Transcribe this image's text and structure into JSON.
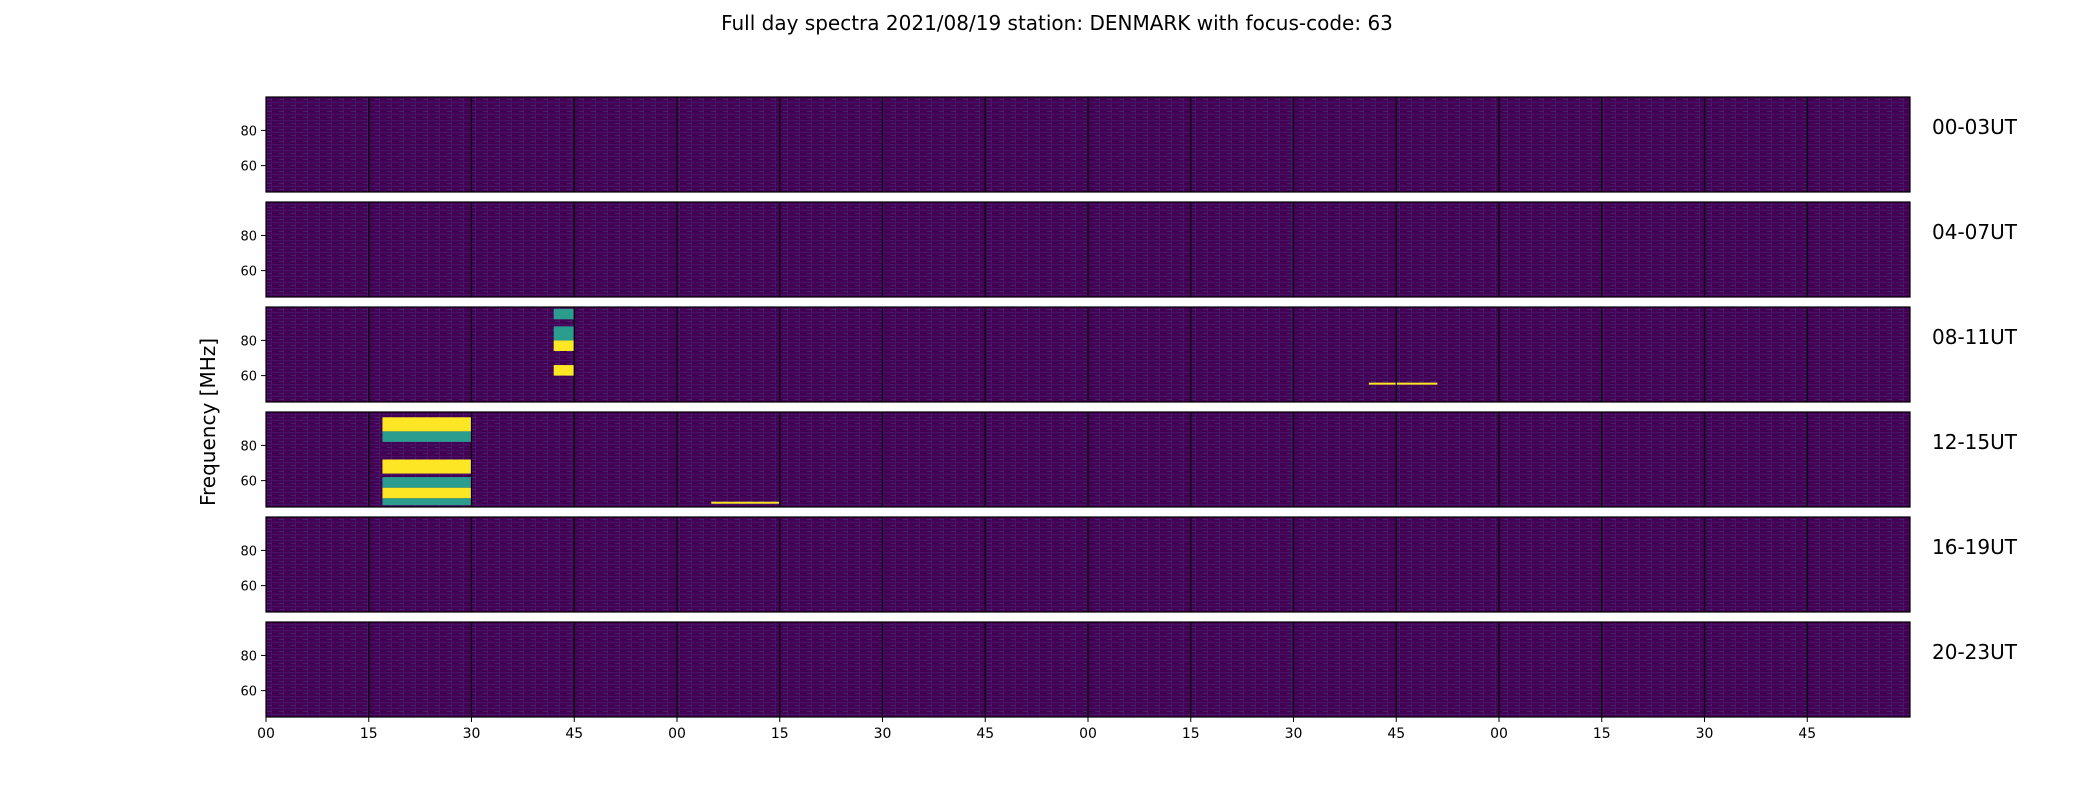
{
  "chart_data": {
    "type": "heatmap",
    "title": "Full day spectra 2021/08/19 station: DENMARK with focus-code: 63",
    "ylabel": "Frequency [MHz]",
    "xlabel": "",
    "ylim": [
      45,
      99
    ],
    "yticks": [
      60,
      80
    ],
    "ytick_labels": [
      "60",
      "80"
    ],
    "xtick_labels": [
      "00",
      "15",
      "30",
      "45",
      "00",
      "15",
      "30",
      "45",
      "00",
      "15",
      "30",
      "45",
      "00",
      "15",
      "30",
      "45"
    ],
    "minutes_per_panel": 15,
    "panels_per_row": 16,
    "colormap": "viridis",
    "rows": [
      {
        "label": "00-03UT",
        "start_hour": 0,
        "bursts": []
      },
      {
        "label": "04-07UT",
        "start_hour": 4,
        "bursts": []
      },
      {
        "label": "08-11UT",
        "start_hour": 8,
        "bursts": [
          {
            "t_start_min": 42,
            "t_end_min": 45,
            "bands": [
              [
                60,
                66,
                "high"
              ],
              [
                74,
                80,
                "high"
              ],
              [
                80,
                88,
                "mid"
              ],
              [
                92,
                98,
                "mid"
              ]
            ]
          },
          {
            "t_start_min": 161,
            "t_end_min": 171,
            "bands": [
              [
                55,
                56,
                "high"
              ]
            ]
          }
        ]
      },
      {
        "label": "12-15UT",
        "start_hour": 12,
        "bursts": [
          {
            "t_start_min": 17,
            "t_end_min": 30,
            "bands": [
              [
                46,
                50,
                "mid"
              ],
              [
                50,
                56,
                "high"
              ],
              [
                56,
                62,
                "mid"
              ],
              [
                64,
                72,
                "high"
              ],
              [
                82,
                88,
                "mid"
              ],
              [
                88,
                96,
                "high"
              ]
            ]
          },
          {
            "t_start_min": 65,
            "t_end_min": 75,
            "bands": [
              [
                47,
                48,
                "high"
              ]
            ]
          }
        ]
      },
      {
        "label": "16-19UT",
        "start_hour": 16,
        "bursts": []
      },
      {
        "label": "20-23UT",
        "start_hour": 20,
        "bursts": []
      }
    ]
  },
  "colors": {
    "background": "#440154",
    "low": "#472d7b",
    "mid": "#2a9d8f",
    "high": "#fde725",
    "frame": "#000000"
  }
}
